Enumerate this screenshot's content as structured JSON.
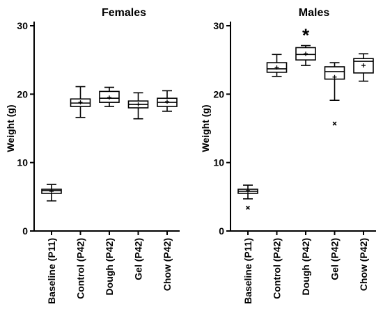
{
  "chart_data": [
    {
      "type": "box",
      "title": "Females",
      "ylabel": "Weight (g)",
      "ylim": [
        0,
        30
      ],
      "yticks": [
        0,
        10,
        20,
        30
      ],
      "categories": [
        "Baseline (P11)",
        "Control (P42)",
        "Dough (P42)",
        "Gel (P42)",
        "Chow (P42)"
      ],
      "boxes": [
        {
          "min": 4.4,
          "q1": 5.5,
          "median": 5.9,
          "q3": 6.1,
          "max": 6.8,
          "mean": 5.8,
          "outliers": []
        },
        {
          "min": 16.6,
          "q1": 18.2,
          "median": 18.7,
          "q3": 19.3,
          "max": 21.1,
          "mean": 18.8,
          "outliers": []
        },
        {
          "min": 18.2,
          "q1": 18.8,
          "median": 19.4,
          "q3": 20.4,
          "max": 21.0,
          "mean": 19.5,
          "outliers": []
        },
        {
          "min": 16.4,
          "q1": 18.0,
          "median": 18.5,
          "q3": 19.0,
          "max": 20.2,
          "mean": 18.5,
          "outliers": []
        },
        {
          "min": 17.5,
          "q1": 18.2,
          "median": 18.8,
          "q3": 19.4,
          "max": 20.5,
          "mean": 18.9,
          "outliers": []
        }
      ],
      "annotations": []
    },
    {
      "type": "box",
      "title": "Males",
      "ylabel": "Weight (g)",
      "ylim": [
        0,
        30
      ],
      "yticks": [
        0,
        10,
        20,
        30
      ],
      "categories": [
        "Baseline (P11)",
        "Control (P42)",
        "Dough (P42)",
        "Gel (P42)",
        "Chow (P42)"
      ],
      "boxes": [
        {
          "min": 4.7,
          "q1": 5.5,
          "median": 5.8,
          "q3": 6.1,
          "max": 6.7,
          "mean": 5.9,
          "outliers": [
            3.4
          ]
        },
        {
          "min": 22.6,
          "q1": 23.2,
          "median": 23.7,
          "q3": 24.6,
          "max": 25.8,
          "mean": 23.9,
          "outliers": []
        },
        {
          "min": 24.2,
          "q1": 25.0,
          "median": 25.8,
          "q3": 26.8,
          "max": 27.1,
          "mean": 25.9,
          "outliers": []
        },
        {
          "min": 19.1,
          "q1": 22.2,
          "median": 23.3,
          "q3": 24.0,
          "max": 24.6,
          "mean": 22.5,
          "outliers": [
            15.7
          ]
        },
        {
          "min": 21.9,
          "q1": 23.1,
          "median": 24.8,
          "q3": 25.2,
          "max": 25.9,
          "mean": 24.2,
          "outliers": []
        }
      ],
      "annotations": [
        {
          "category": "Dough (P42)",
          "text": "*"
        }
      ]
    }
  ]
}
